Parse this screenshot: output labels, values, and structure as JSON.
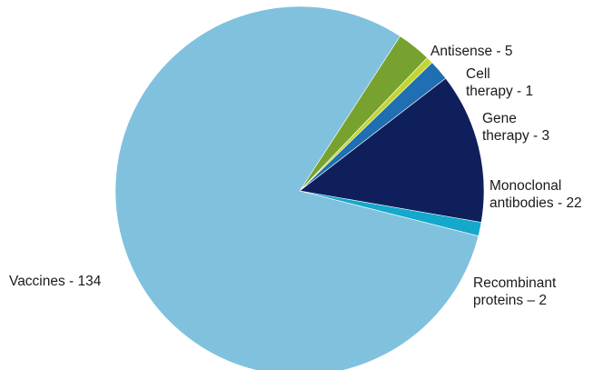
{
  "chart_data": {
    "type": "pie",
    "title": "",
    "slices": [
      {
        "label": [
          "Antisense - 5"
        ],
        "value": 5,
        "color": "#77a22f"
      },
      {
        "label": [
          "Cell",
          "therapy - 1"
        ],
        "value": 1,
        "color": "#c4d62e"
      },
      {
        "label": [
          "Gene",
          "therapy - 3"
        ],
        "value": 3,
        "color": "#1f6fb2"
      },
      {
        "label": [
          "Monoclonal",
          "antibodies - 22"
        ],
        "value": 22,
        "color": "#0f1f5c"
      },
      {
        "label": [
          "Recombinant",
          "proteins – 2"
        ],
        "value": 2,
        "color": "#13a8cc"
      },
      {
        "label": [
          "Vaccines - 134"
        ],
        "value": 134,
        "color": "#80c1de"
      }
    ]
  }
}
